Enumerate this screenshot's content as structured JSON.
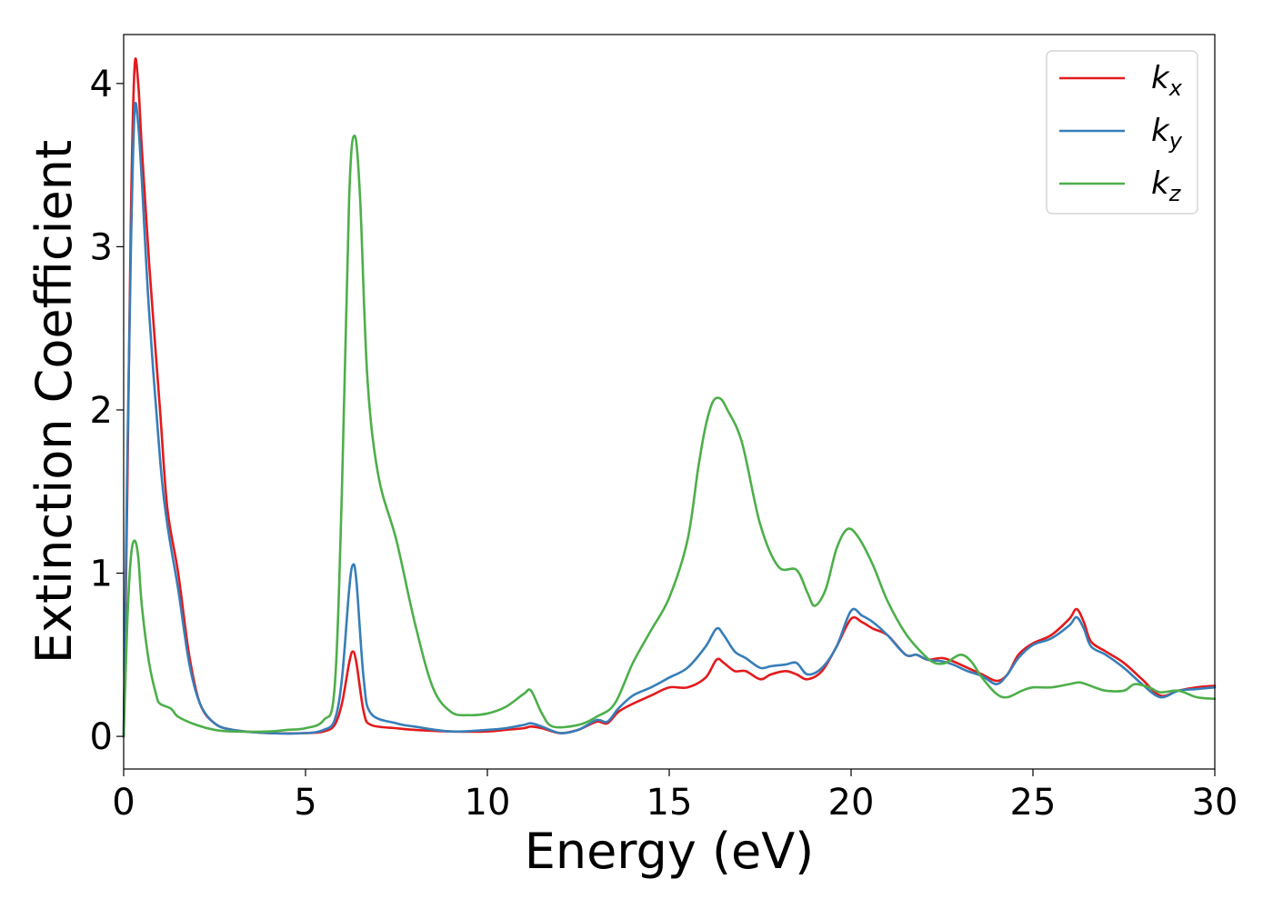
{
  "chart_data": {
    "type": "line",
    "xlabel": "Energy (eV)",
    "ylabel": "Extinction Coefficient",
    "xlim": [
      0,
      30
    ],
    "ylim": [
      -0.2,
      4.3
    ],
    "x_ticks": [
      "0",
      "5",
      "10",
      "15",
      "20",
      "25",
      "30"
    ],
    "y_ticks": [
      "0",
      "1",
      "2",
      "3",
      "4"
    ],
    "grid": false,
    "legend_position": "top-right",
    "series": [
      {
        "name": "k_x",
        "label_base": "k",
        "label_sub": "x",
        "color": "#e41a1c",
        "points": [
          [
            0,
            0
          ],
          [
            0.1,
            1.5
          ],
          [
            0.2,
            3.2
          ],
          [
            0.3,
            4.1
          ],
          [
            0.4,
            4.0
          ],
          [
            0.5,
            3.6
          ],
          [
            0.7,
            2.9
          ],
          [
            1.0,
            2.0
          ],
          [
            1.2,
            1.4
          ],
          [
            1.5,
            1.0
          ],
          [
            1.8,
            0.5
          ],
          [
            2.1,
            0.2
          ],
          [
            2.5,
            0.08
          ],
          [
            3.0,
            0.04
          ],
          [
            4.0,
            0.02
          ],
          [
            5.0,
            0.02
          ],
          [
            5.5,
            0.03
          ],
          [
            5.8,
            0.07
          ],
          [
            6.0,
            0.2
          ],
          [
            6.2,
            0.45
          ],
          [
            6.3,
            0.52
          ],
          [
            6.4,
            0.45
          ],
          [
            6.6,
            0.15
          ],
          [
            6.8,
            0.07
          ],
          [
            7.5,
            0.05
          ],
          [
            8.0,
            0.04
          ],
          [
            9.0,
            0.03
          ],
          [
            10.0,
            0.03
          ],
          [
            10.5,
            0.04
          ],
          [
            11.0,
            0.05
          ],
          [
            11.2,
            0.06
          ],
          [
            11.5,
            0.05
          ],
          [
            12.0,
            0.02
          ],
          [
            12.5,
            0.04
          ],
          [
            13.0,
            0.09
          ],
          [
            13.3,
            0.08
          ],
          [
            13.6,
            0.15
          ],
          [
            14.0,
            0.2
          ],
          [
            14.5,
            0.25
          ],
          [
            15.0,
            0.3
          ],
          [
            15.5,
            0.3
          ],
          [
            16.0,
            0.36
          ],
          [
            16.3,
            0.47
          ],
          [
            16.5,
            0.45
          ],
          [
            16.8,
            0.4
          ],
          [
            17.1,
            0.4
          ],
          [
            17.5,
            0.35
          ],
          [
            17.8,
            0.38
          ],
          [
            18.2,
            0.4
          ],
          [
            18.5,
            0.38
          ],
          [
            18.8,
            0.35
          ],
          [
            19.2,
            0.4
          ],
          [
            19.6,
            0.55
          ],
          [
            20.0,
            0.72
          ],
          [
            20.3,
            0.7
          ],
          [
            20.6,
            0.66
          ],
          [
            21.0,
            0.62
          ],
          [
            21.5,
            0.5
          ],
          [
            21.8,
            0.5
          ],
          [
            22.1,
            0.47
          ],
          [
            22.5,
            0.48
          ],
          [
            22.8,
            0.46
          ],
          [
            23.2,
            0.42
          ],
          [
            23.6,
            0.38
          ],
          [
            24.0,
            0.34
          ],
          [
            24.3,
            0.38
          ],
          [
            24.6,
            0.5
          ],
          [
            25.0,
            0.57
          ],
          [
            25.5,
            0.62
          ],
          [
            26.0,
            0.72
          ],
          [
            26.2,
            0.78
          ],
          [
            26.4,
            0.7
          ],
          [
            26.6,
            0.58
          ],
          [
            27.0,
            0.52
          ],
          [
            27.5,
            0.45
          ],
          [
            28.0,
            0.35
          ],
          [
            28.5,
            0.25
          ],
          [
            29.0,
            0.28
          ],
          [
            29.5,
            0.3
          ],
          [
            30.0,
            0.31
          ]
        ]
      },
      {
        "name": "k_y",
        "label_base": "k",
        "label_sub": "y",
        "color": "#377eb8",
        "points": [
          [
            0,
            0
          ],
          [
            0.1,
            1.7
          ],
          [
            0.2,
            3.0
          ],
          [
            0.3,
            3.83
          ],
          [
            0.4,
            3.75
          ],
          [
            0.5,
            3.4
          ],
          [
            0.7,
            2.6
          ],
          [
            1.0,
            1.7
          ],
          [
            1.2,
            1.3
          ],
          [
            1.5,
            0.9
          ],
          [
            1.8,
            0.45
          ],
          [
            2.1,
            0.2
          ],
          [
            2.5,
            0.08
          ],
          [
            3.0,
            0.04
          ],
          [
            4.0,
            0.02
          ],
          [
            5.0,
            0.02
          ],
          [
            5.5,
            0.04
          ],
          [
            5.8,
            0.1
          ],
          [
            6.0,
            0.35
          ],
          [
            6.2,
            0.9
          ],
          [
            6.3,
            1.05
          ],
          [
            6.4,
            0.95
          ],
          [
            6.6,
            0.35
          ],
          [
            6.8,
            0.14
          ],
          [
            7.5,
            0.08
          ],
          [
            8.0,
            0.06
          ],
          [
            9.0,
            0.03
          ],
          [
            10.0,
            0.04
          ],
          [
            10.5,
            0.05
          ],
          [
            11.0,
            0.07
          ],
          [
            11.2,
            0.08
          ],
          [
            11.5,
            0.06
          ],
          [
            12.0,
            0.02
          ],
          [
            12.5,
            0.04
          ],
          [
            13.0,
            0.1
          ],
          [
            13.3,
            0.09
          ],
          [
            13.6,
            0.17
          ],
          [
            14.0,
            0.25
          ],
          [
            14.5,
            0.3
          ],
          [
            15.0,
            0.36
          ],
          [
            15.5,
            0.42
          ],
          [
            16.0,
            0.55
          ],
          [
            16.3,
            0.66
          ],
          [
            16.5,
            0.62
          ],
          [
            16.8,
            0.52
          ],
          [
            17.1,
            0.48
          ],
          [
            17.5,
            0.42
          ],
          [
            17.8,
            0.43
          ],
          [
            18.2,
            0.44
          ],
          [
            18.5,
            0.45
          ],
          [
            18.8,
            0.38
          ],
          [
            19.2,
            0.42
          ],
          [
            19.6,
            0.55
          ],
          [
            20.0,
            0.77
          ],
          [
            20.3,
            0.74
          ],
          [
            20.6,
            0.7
          ],
          [
            21.0,
            0.62
          ],
          [
            21.5,
            0.5
          ],
          [
            21.8,
            0.5
          ],
          [
            22.1,
            0.47
          ],
          [
            22.5,
            0.46
          ],
          [
            22.8,
            0.44
          ],
          [
            23.2,
            0.4
          ],
          [
            23.6,
            0.37
          ],
          [
            24.0,
            0.32
          ],
          [
            24.3,
            0.38
          ],
          [
            24.6,
            0.48
          ],
          [
            25.0,
            0.56
          ],
          [
            25.5,
            0.6
          ],
          [
            26.0,
            0.68
          ],
          [
            26.2,
            0.73
          ],
          [
            26.4,
            0.66
          ],
          [
            26.6,
            0.55
          ],
          [
            27.0,
            0.5
          ],
          [
            27.5,
            0.42
          ],
          [
            28.0,
            0.32
          ],
          [
            28.5,
            0.24
          ],
          [
            29.0,
            0.28
          ],
          [
            29.5,
            0.29
          ],
          [
            30.0,
            0.3
          ]
        ]
      },
      {
        "name": "k_z",
        "label_base": "k",
        "label_sub": "z",
        "color": "#4daf4a",
        "points": [
          [
            0,
            0
          ],
          [
            0.1,
            0.7
          ],
          [
            0.2,
            1.1
          ],
          [
            0.3,
            1.2
          ],
          [
            0.4,
            1.1
          ],
          [
            0.5,
            0.8
          ],
          [
            0.7,
            0.45
          ],
          [
            0.9,
            0.25
          ],
          [
            1.0,
            0.2
          ],
          [
            1.3,
            0.17
          ],
          [
            1.5,
            0.12
          ],
          [
            2.0,
            0.07
          ],
          [
            2.5,
            0.04
          ],
          [
            3.0,
            0.03
          ],
          [
            4.0,
            0.03
          ],
          [
            4.5,
            0.04
          ],
          [
            5.0,
            0.05
          ],
          [
            5.5,
            0.1
          ],
          [
            5.8,
            0.3
          ],
          [
            6.0,
            1.5
          ],
          [
            6.2,
            3.3
          ],
          [
            6.35,
            3.68
          ],
          [
            6.5,
            3.3
          ],
          [
            6.7,
            2.2
          ],
          [
            7.0,
            1.6
          ],
          [
            7.5,
            1.2
          ],
          [
            8.0,
            0.7
          ],
          [
            8.5,
            0.3
          ],
          [
            9.0,
            0.15
          ],
          [
            9.5,
            0.13
          ],
          [
            10.0,
            0.14
          ],
          [
            10.5,
            0.18
          ],
          [
            11.0,
            0.26
          ],
          [
            11.2,
            0.28
          ],
          [
            11.5,
            0.14
          ],
          [
            11.8,
            0.06
          ],
          [
            12.5,
            0.07
          ],
          [
            13.0,
            0.12
          ],
          [
            13.5,
            0.2
          ],
          [
            14.0,
            0.45
          ],
          [
            14.5,
            0.65
          ],
          [
            15.0,
            0.85
          ],
          [
            15.5,
            1.2
          ],
          [
            15.8,
            1.65
          ],
          [
            16.0,
            1.9
          ],
          [
            16.2,
            2.05
          ],
          [
            16.4,
            2.07
          ],
          [
            16.6,
            2.0
          ],
          [
            17.0,
            1.8
          ],
          [
            17.5,
            1.3
          ],
          [
            18.0,
            1.04
          ],
          [
            18.5,
            1.02
          ],
          [
            18.8,
            0.88
          ],
          [
            19.0,
            0.8
          ],
          [
            19.3,
            0.9
          ],
          [
            19.6,
            1.15
          ],
          [
            19.9,
            1.27
          ],
          [
            20.2,
            1.22
          ],
          [
            20.6,
            1.05
          ],
          [
            21.0,
            0.83
          ],
          [
            21.5,
            0.63
          ],
          [
            22.0,
            0.5
          ],
          [
            22.3,
            0.45
          ],
          [
            22.6,
            0.45
          ],
          [
            23.0,
            0.5
          ],
          [
            23.3,
            0.46
          ],
          [
            23.6,
            0.36
          ],
          [
            24.0,
            0.26
          ],
          [
            24.3,
            0.24
          ],
          [
            24.7,
            0.28
          ],
          [
            25.0,
            0.3
          ],
          [
            25.5,
            0.3
          ],
          [
            26.0,
            0.32
          ],
          [
            26.3,
            0.33
          ],
          [
            26.7,
            0.3
          ],
          [
            27.0,
            0.28
          ],
          [
            27.5,
            0.28
          ],
          [
            27.8,
            0.32
          ],
          [
            28.2,
            0.3
          ],
          [
            28.5,
            0.27
          ],
          [
            29.0,
            0.28
          ],
          [
            29.5,
            0.24
          ],
          [
            30.0,
            0.23
          ]
        ]
      }
    ]
  }
}
